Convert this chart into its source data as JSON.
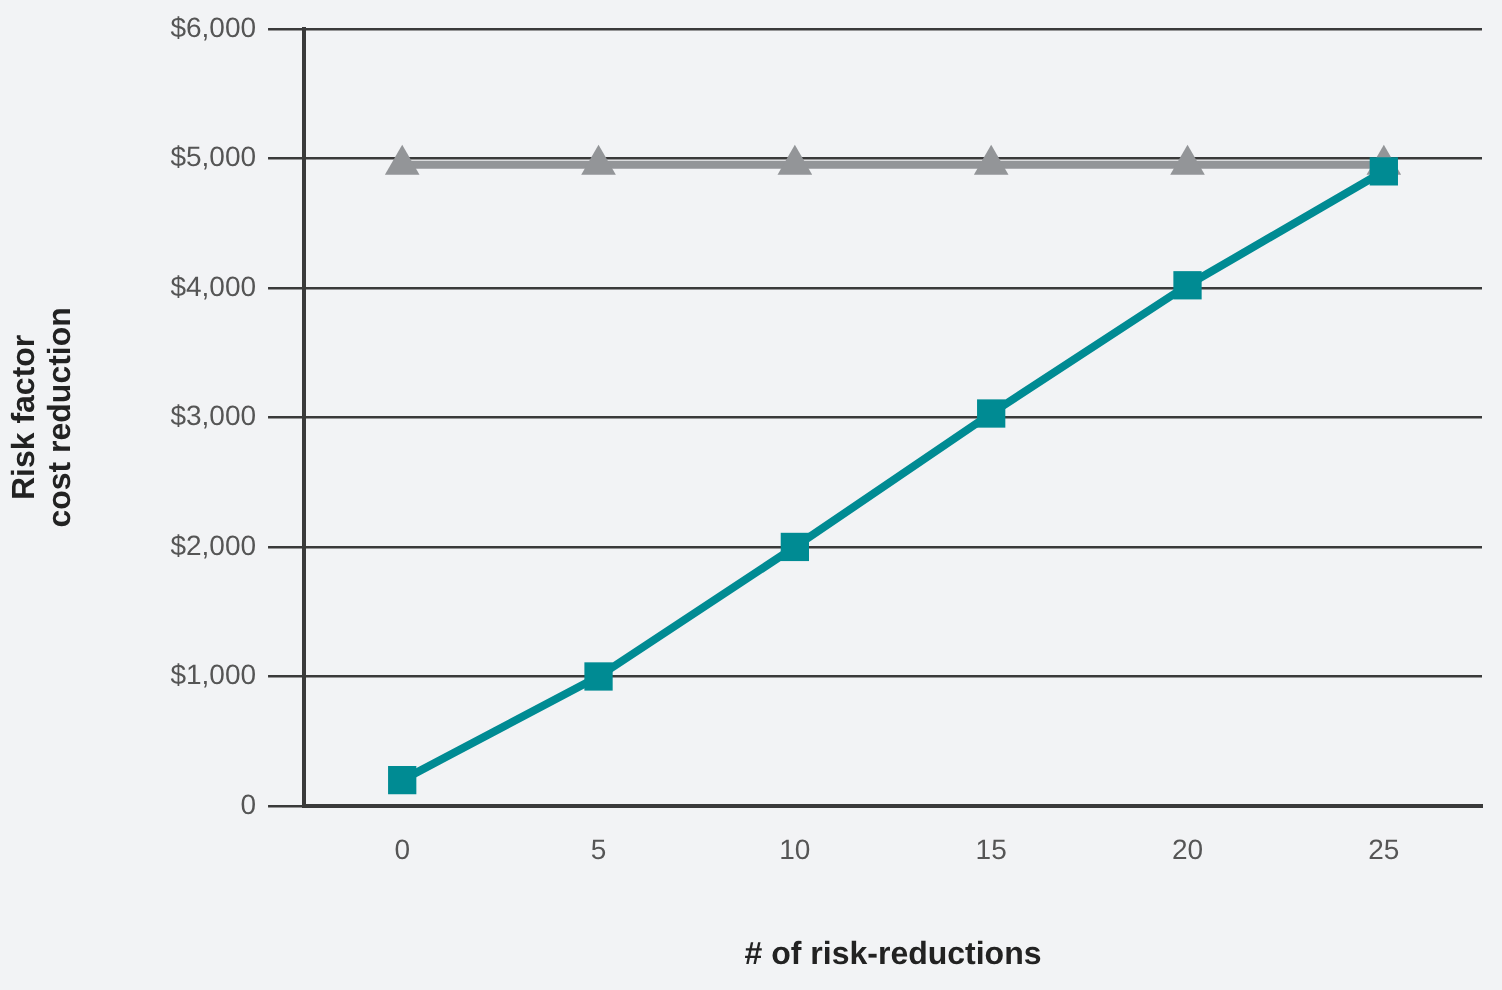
{
  "chart_data": {
    "type": "line",
    "xlabel": "# of risk-reductions",
    "ylabel": "Risk factor\ncost reduction",
    "categories": [
      "0",
      "5",
      "10",
      "15",
      "20",
      "25"
    ],
    "series": [
      {
        "color": "#939598",
        "marker": "triangle",
        "values": [
          4950,
          4950,
          4950,
          4950,
          4950,
          4950
        ]
      },
      {
        "color": "#008b93",
        "marker": "square",
        "values": [
          200,
          1000,
          2000,
          3030,
          4020,
          4900
        ]
      }
    ],
    "ylim": [
      0,
      6000
    ],
    "yticks": [
      {
        "value": 0,
        "label": "0"
      },
      {
        "value": 1000,
        "label": "$1,000"
      },
      {
        "value": 2000,
        "label": "$2,000"
      },
      {
        "value": 3000,
        "label": "$3,000"
      },
      {
        "value": 4000,
        "label": "$4,000"
      },
      {
        "value": 5000,
        "label": "$5,000"
      },
      {
        "value": 6000,
        "label": "$6,000"
      }
    ],
    "grid": "y",
    "legend": false,
    "line_style": "solid"
  }
}
